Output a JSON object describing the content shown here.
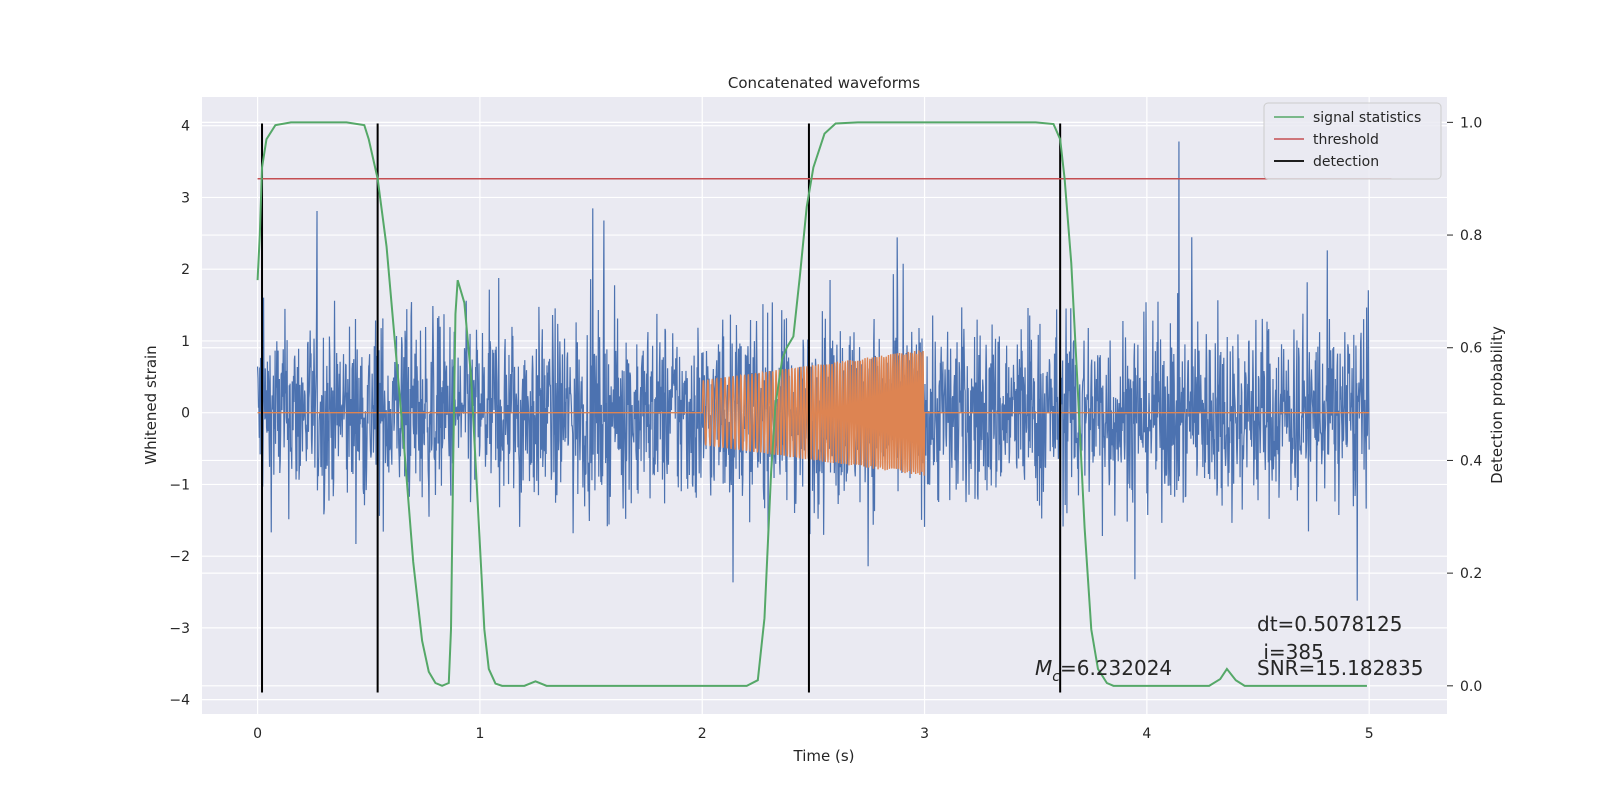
{
  "chart_data": {
    "type": "line",
    "title": "Concatenated waveforms",
    "xlabel": "Time (s)",
    "ylabel": "Whitened strain",
    "ylabel_right": "Detection probability",
    "xlim": [
      -0.25,
      5.35
    ],
    "ylim": [
      -4.2,
      4.4
    ],
    "ylim_right": [
      -0.05,
      1.045
    ],
    "xticks": [
      0,
      1,
      2,
      3,
      4,
      5
    ],
    "yticks": [
      -4,
      -3,
      -2,
      -1,
      0,
      1,
      2,
      3,
      4
    ],
    "yticks_right": [
      0.0,
      0.2,
      0.4,
      0.6,
      0.8,
      1.0
    ],
    "xtick_labels": [
      "0",
      "1",
      "2",
      "3",
      "4",
      "5"
    ],
    "ytick_labels": [
      "−4",
      "−3",
      "−2",
      "−1",
      "0",
      "1",
      "2",
      "3",
      "4"
    ],
    "ytick_right_labels": [
      "0.0",
      "0.2",
      "0.4",
      "0.6",
      "0.8",
      "1.0"
    ],
    "grid": true,
    "legend_position": "top-right",
    "colors": {
      "strain": "#4c72b0",
      "template": "#dd8452",
      "signal_statistics": "#55a868",
      "threshold": "#c44e52",
      "detection": "#000000",
      "background": "#eaeaf2"
    },
    "series": [
      {
        "name": "signal statistics",
        "axis": "right",
        "points": [
          [
            0.0,
            0.72
          ],
          [
            0.01,
            0.8
          ],
          [
            0.02,
            0.92
          ],
          [
            0.04,
            0.97
          ],
          [
            0.08,
            0.995
          ],
          [
            0.15,
            1.0
          ],
          [
            0.3,
            1.0
          ],
          [
            0.4,
            1.0
          ],
          [
            0.48,
            0.995
          ],
          [
            0.5,
            0.97
          ],
          [
            0.54,
            0.9
          ],
          [
            0.58,
            0.78
          ],
          [
            0.62,
            0.6
          ],
          [
            0.66,
            0.42
          ],
          [
            0.7,
            0.22
          ],
          [
            0.74,
            0.08
          ],
          [
            0.77,
            0.025
          ],
          [
            0.8,
            0.005
          ],
          [
            0.83,
            0.0
          ],
          [
            0.86,
            0.005
          ],
          [
            0.87,
            0.1
          ],
          [
            0.88,
            0.4
          ],
          [
            0.89,
            0.66
          ],
          [
            0.9,
            0.72
          ],
          [
            0.93,
            0.68
          ],
          [
            0.96,
            0.55
          ],
          [
            0.98,
            0.4
          ],
          [
            1.0,
            0.25
          ],
          [
            1.02,
            0.1
          ],
          [
            1.04,
            0.03
          ],
          [
            1.07,
            0.004
          ],
          [
            1.1,
            0.0
          ],
          [
            1.2,
            0.0
          ],
          [
            1.25,
            0.008
          ],
          [
            1.3,
            0.0
          ],
          [
            1.6,
            0.0
          ],
          [
            1.9,
            0.0
          ],
          [
            2.2,
            0.0
          ],
          [
            2.25,
            0.01
          ],
          [
            2.28,
            0.12
          ],
          [
            2.31,
            0.38
          ],
          [
            2.33,
            0.5
          ],
          [
            2.36,
            0.58
          ],
          [
            2.38,
            0.6
          ],
          [
            2.41,
            0.62
          ],
          [
            2.44,
            0.73
          ],
          [
            2.47,
            0.85
          ],
          [
            2.5,
            0.92
          ],
          [
            2.55,
            0.98
          ],
          [
            2.6,
            0.998
          ],
          [
            2.7,
            1.0
          ],
          [
            3.0,
            1.0
          ],
          [
            3.5,
            1.0
          ],
          [
            3.58,
            0.997
          ],
          [
            3.61,
            0.97
          ],
          [
            3.63,
            0.9
          ],
          [
            3.66,
            0.75
          ],
          [
            3.69,
            0.52
          ],
          [
            3.72,
            0.28
          ],
          [
            3.75,
            0.1
          ],
          [
            3.78,
            0.03
          ],
          [
            3.82,
            0.005
          ],
          [
            3.85,
            0.0
          ],
          [
            4.0,
            0.0
          ],
          [
            4.28,
            0.0
          ],
          [
            4.33,
            0.012
          ],
          [
            4.36,
            0.03
          ],
          [
            4.4,
            0.01
          ],
          [
            4.44,
            0.0
          ],
          [
            4.6,
            0.0
          ],
          [
            4.99,
            0.0
          ]
        ]
      },
      {
        "name": "threshold",
        "axis": "right",
        "value": 0.9,
        "x_range": [
          0.0,
          5.1
        ]
      },
      {
        "name": "detection",
        "axis": "left",
        "x": [
          0.02,
          0.54,
          2.48,
          3.61
        ],
        "y_range": [
          -3.9,
          4.03
        ]
      },
      {
        "name": "",
        "axis": "left",
        "description": "noisy whitened strain, 0–5 s, amplitude mostly within ±2.5 with spikes to about ±4"
      },
      {
        "name": "",
        "axis": "left",
        "description": "injected chirp",
        "x_range": [
          2.0,
          3.0
        ],
        "amplitude_start": 0.45,
        "amplitude_end": 0.88
      }
    ],
    "annotations": {
      "mc_symbol": "M",
      "mc_sub": "c",
      "mc_value": "=6.232024",
      "dt": "dt=0.5078125",
      "i": " i=385",
      "snr": "SNR=15.182835"
    }
  }
}
